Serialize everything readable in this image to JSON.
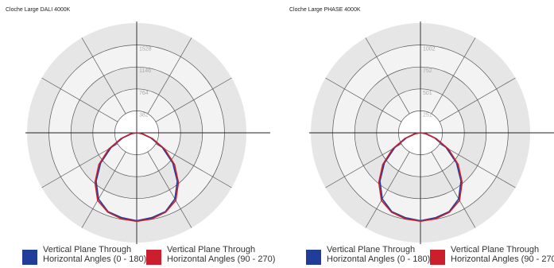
{
  "legend": [
    {
      "line1": "Vertical Plane Through",
      "line2": "Horizontal Angles (0 - 180)",
      "color": "#1f3d99"
    },
    {
      "line1": "Vertical Plane Through",
      "line2": "Horizontal Angles (90 - 270)",
      "color": "#cc1f2e"
    }
  ],
  "chart_data": [
    {
      "type": "polar-line",
      "title": "Cloche Large DALI 4000K",
      "radial_ticks": [
        382,
        764,
        1146,
        1528
      ],
      "rmax": 1910,
      "angle_unit": "degrees from nadir",
      "series": [
        {
          "color": "#1f3d99",
          "angles": [
            0,
            10,
            20,
            30,
            40,
            50,
            60,
            70,
            80,
            90
          ],
          "values": [
            1530,
            1500,
            1460,
            1330,
            1100,
            820,
            520,
            260,
            90,
            0
          ]
        },
        {
          "color": "#cc1f2e",
          "angles": [
            0,
            10,
            20,
            30,
            40,
            50,
            60,
            70,
            80,
            90
          ],
          "values": [
            1540,
            1520,
            1470,
            1360,
            1130,
            860,
            560,
            290,
            110,
            0
          ]
        }
      ]
    },
    {
      "type": "polar-line",
      "title": "Cloche Large PHASE 4000K",
      "radial_ticks": [
        251,
        501,
        752,
        1002
      ],
      "rmax": 1253,
      "angle_unit": "degrees from nadir",
      "series": [
        {
          "color": "#1f3d99",
          "angles": [
            0,
            10,
            20,
            30,
            40,
            50,
            60,
            70,
            80,
            90
          ],
          "values": [
            1003,
            985,
            958,
            872,
            720,
            538,
            341,
            171,
            59,
            0
          ]
        },
        {
          "color": "#cc1f2e",
          "angles": [
            0,
            10,
            20,
            30,
            40,
            50,
            60,
            70,
            80,
            90
          ],
          "values": [
            1010,
            997,
            965,
            892,
            740,
            563,
            367,
            190,
            72,
            0
          ]
        }
      ]
    }
  ]
}
